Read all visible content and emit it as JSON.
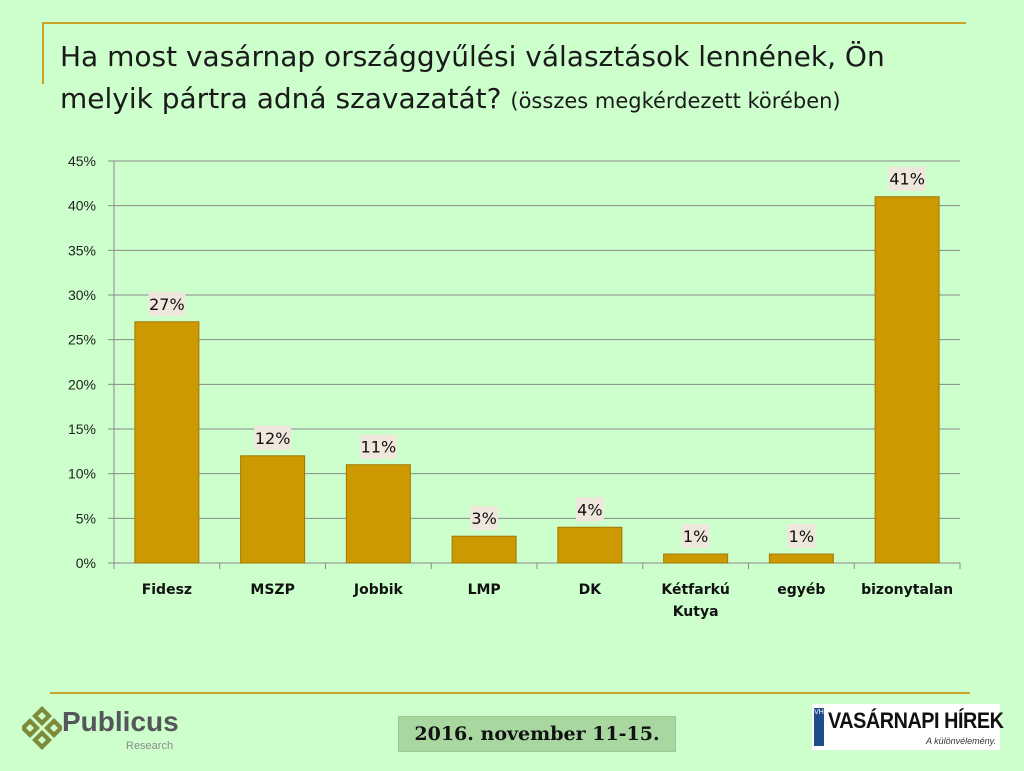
{
  "title_main": "Ha most vasárnap országgyűlési választások lennének, Ön melyik pártra adná szavazatát?",
  "title_sub": "(összes megkérdezett körében)",
  "footer": {
    "logo_name": "Publicus",
    "logo_sub": "Research",
    "date": "2016. november 11-15.",
    "partner_mark": "VH",
    "partner_name": "VASÁRNAPI HÍREK",
    "partner_tagline": "A különvélemény."
  },
  "colors": {
    "background": "#ccffcc",
    "bar": "#cc9900",
    "bar_stroke": "#a37800",
    "rule": "#c9a227",
    "label_bg": "#efe7dc"
  },
  "chart_data": {
    "type": "bar",
    "title": "Ha most vasárnap országgyűlési választások lennének, Ön melyik pártra adná szavazatát? (összes megkérdezett körében)",
    "categories": [
      "Fidesz",
      "MSZP",
      "Jobbik",
      "LMP",
      "DK",
      "Kétfarkú Kutya",
      "egyéb",
      "bizonytalan"
    ],
    "category_lines": [
      [
        "Fidesz"
      ],
      [
        "MSZP"
      ],
      [
        "Jobbik"
      ],
      [
        "LMP"
      ],
      [
        "DK"
      ],
      [
        "Kétfarkú",
        "Kutya"
      ],
      [
        "egyéb"
      ],
      [
        "bizonytalan"
      ]
    ],
    "values": [
      27,
      12,
      11,
      3,
      4,
      1,
      1,
      41
    ],
    "value_labels": [
      "27%",
      "12%",
      "11%",
      "3%",
      "4%",
      "1%",
      "1%",
      "41%"
    ],
    "ylim": [
      0,
      45
    ],
    "yticks": [
      0,
      5,
      10,
      15,
      20,
      25,
      30,
      35,
      40,
      45
    ],
    "ytick_labels": [
      "0%",
      "5%",
      "10%",
      "15%",
      "20%",
      "25%",
      "30%",
      "35%",
      "40%",
      "45%"
    ],
    "xlabel": "",
    "ylabel": "",
    "grid": true,
    "legend": false
  }
}
